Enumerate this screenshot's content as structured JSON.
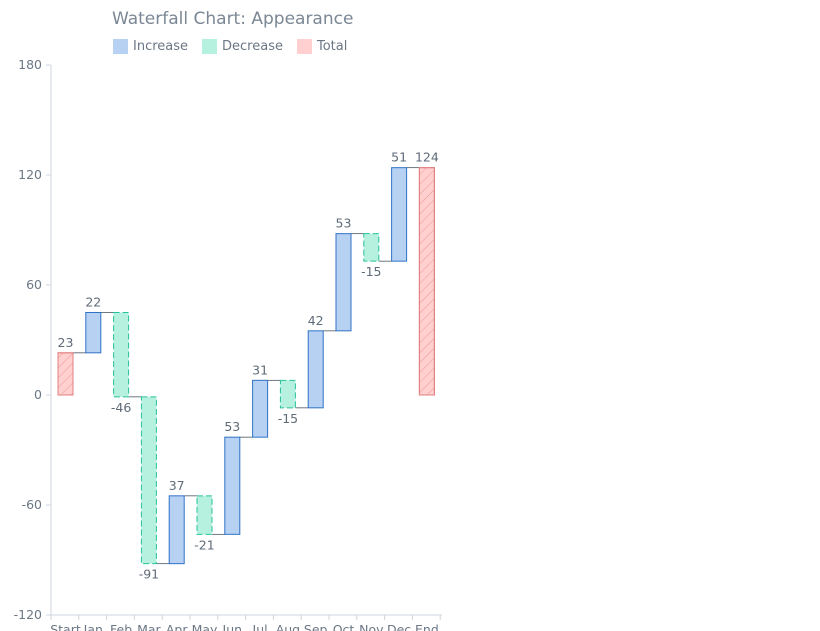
{
  "chart_data": {
    "type": "waterfall",
    "title": "Waterfall Chart: Appearance",
    "legend": [
      {
        "key": "increase",
        "label": "Increase",
        "fill": "#b7d1f2",
        "stroke": "#2f72c6"
      },
      {
        "key": "decrease",
        "label": "Decrease",
        "fill": "#b6f0df",
        "stroke": "#27c29a"
      },
      {
        "key": "total",
        "label": "Total",
        "fill": "#ffd0cf",
        "stroke": "#e07f7f"
      }
    ],
    "legend_position": "top-left",
    "categories": [
      "Start",
      "Jan",
      "Feb",
      "Mar",
      "Apr",
      "May",
      "Jun",
      "Jul",
      "Aug",
      "Sep",
      "Oct",
      "Nov",
      "Dec",
      "End"
    ],
    "bars": [
      {
        "kind": "total",
        "label": "23",
        "start": 0,
        "end": 23
      },
      {
        "kind": "increase",
        "label": "22",
        "start": 23,
        "end": 45
      },
      {
        "kind": "decrease",
        "label": "-46",
        "start": 45,
        "end": -1
      },
      {
        "kind": "decrease",
        "label": "-91",
        "start": -1,
        "end": -92
      },
      {
        "kind": "increase",
        "label": "37",
        "start": -92,
        "end": -55
      },
      {
        "kind": "decrease",
        "label": "-21",
        "start": -55,
        "end": -76
      },
      {
        "kind": "increase",
        "label": "53",
        "start": -76,
        "end": -23
      },
      {
        "kind": "increase",
        "label": "31",
        "start": -23,
        "end": 8
      },
      {
        "kind": "decrease",
        "label": "-15",
        "start": 8,
        "end": -7
      },
      {
        "kind": "increase",
        "label": "42",
        "start": -7,
        "end": 35
      },
      {
        "kind": "increase",
        "label": "53",
        "start": 35,
        "end": 88
      },
      {
        "kind": "decrease",
        "label": "-15",
        "start": 88,
        "end": 73
      },
      {
        "kind": "increase",
        "label": "51",
        "start": 73,
        "end": 124
      },
      {
        "kind": "total",
        "label": "124",
        "start": 0,
        "end": 124
      }
    ],
    "y_ticks": [
      {
        "value": 180,
        "label": "180"
      },
      {
        "value": 120,
        "label": "120"
      },
      {
        "value": 60,
        "label": "60"
      },
      {
        "value": 0,
        "label": "0"
      },
      {
        "value": -60,
        "label": "-60"
      },
      {
        "value": -120,
        "label": "-120"
      }
    ],
    "ylim": [
      -120,
      180
    ],
    "grid": false
  }
}
